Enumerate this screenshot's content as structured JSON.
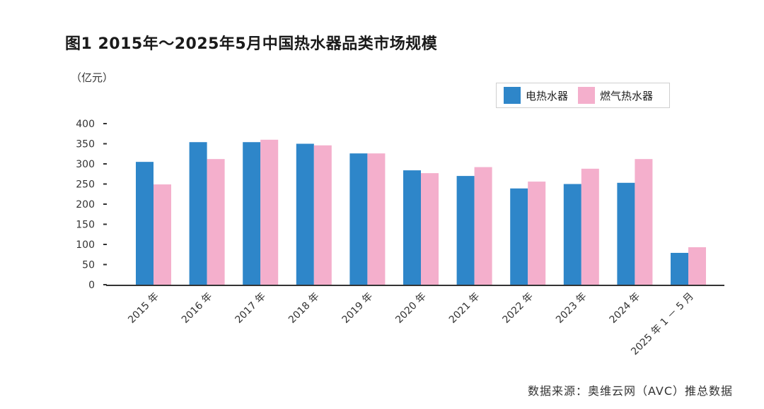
{
  "chart_data": {
    "type": "bar",
    "title": "图1 2015年～2025年5月中国热水器品类市场规模",
    "unit_label": "（亿元）",
    "categories": [
      "2015 年",
      "2016 年",
      "2017 年",
      "2018 年",
      "2019 年",
      "2020 年",
      "2021 年",
      "2022 年",
      "2023 年",
      "2024 年",
      "2025 年 1 － 5 月"
    ],
    "series": [
      {
        "name": "电热水器",
        "color": "#2e86c9",
        "values": [
          305,
          354,
          354,
          350,
          326,
          284,
          270,
          239,
          250,
          253,
          79
        ]
      },
      {
        "name": "燃气热水器",
        "color": "#f4afcc",
        "values": [
          249,
          312,
          360,
          346,
          326,
          277,
          292,
          256,
          288,
          312,
          93
        ]
      }
    ],
    "yticks": [
      "400",
      "350",
      "300",
      "250",
      "200",
      "150",
      "100",
      "50",
      "0"
    ],
    "ylim": [
      0,
      400
    ],
    "grid": false,
    "legend_position": "top-right",
    "source": "数据来源：奥维云网（AVC）推总数据"
  }
}
